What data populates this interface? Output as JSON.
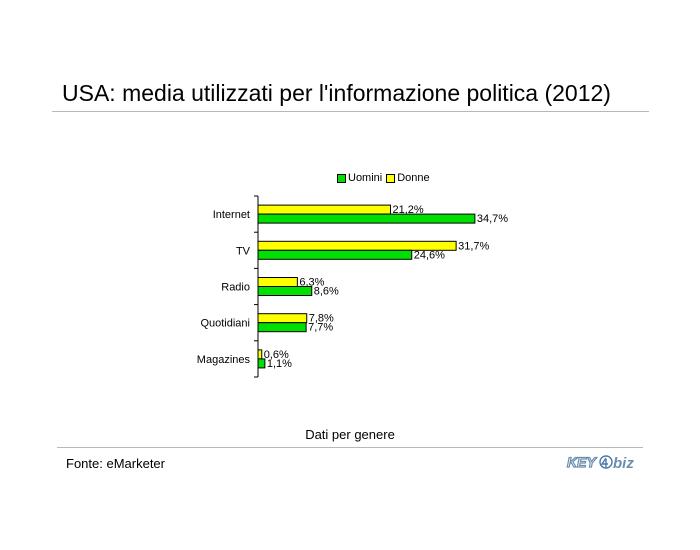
{
  "title": "USA: media utilizzati per l'informazione politica (2012)",
  "subtitle": "Dati per genere",
  "source": "Fonte: eMarketer",
  "logo": {
    "text_a": "KEY",
    "text_b": "biz"
  },
  "chart_data": {
    "type": "bar",
    "orientation": "horizontal",
    "categories": [
      "Internet",
      "TV",
      "Radio",
      "Quotidiani",
      "Magazines"
    ],
    "series": [
      {
        "name": "Donne",
        "color": "#ffff00",
        "values": [
          21.2,
          31.7,
          6.3,
          7.8,
          0.6
        ],
        "labels": [
          "21,2%",
          "31,7%",
          "6,3%",
          "7,8%",
          "0,6%"
        ]
      },
      {
        "name": "Uomini",
        "color": "#00e000",
        "values": [
          34.7,
          24.6,
          8.6,
          7.7,
          1.1
        ],
        "labels": [
          "34,7%",
          "24,6%",
          "8,6%",
          "7,7%",
          "1,1%"
        ]
      }
    ],
    "legend_order": [
      "Uomini",
      "Donne"
    ],
    "legend_position": "top",
    "xlim": [
      0,
      40
    ],
    "grid": false
  }
}
